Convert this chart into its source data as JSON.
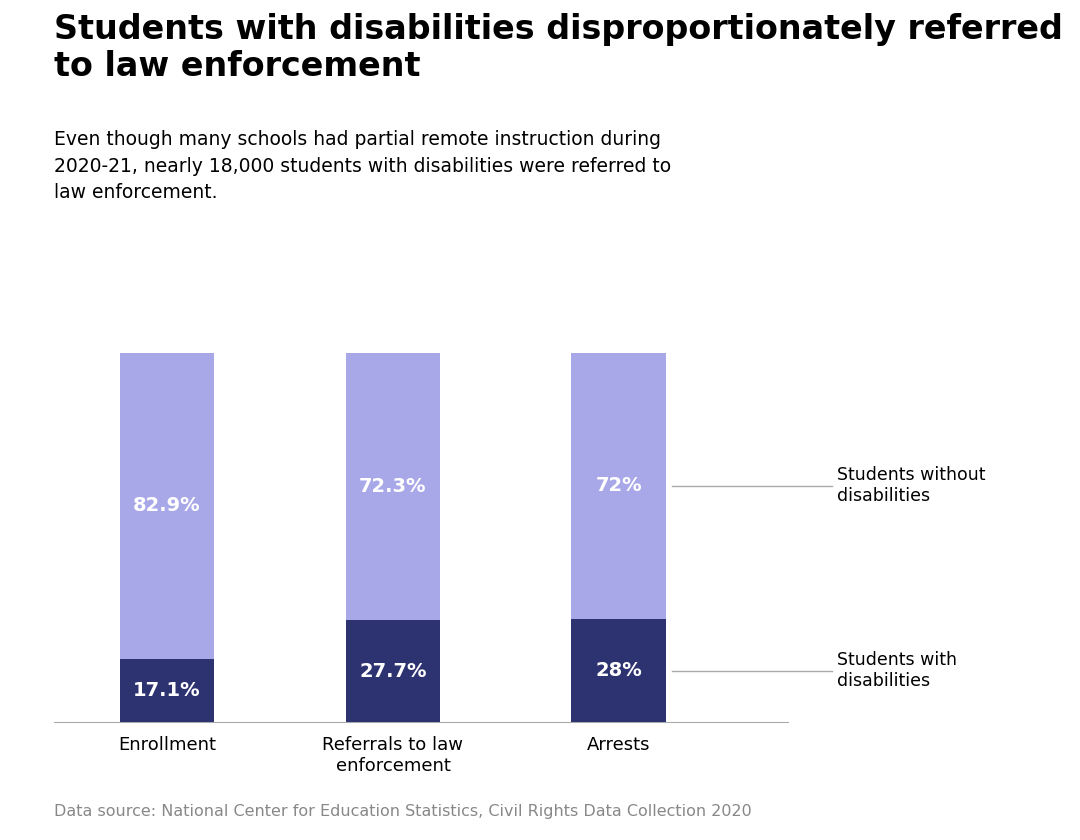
{
  "title": "Students with disabilities disproportionately referred\nto law enforcement",
  "subtitle": "Even though many schools had partial remote instruction during\n2020-21, nearly 18,000 students with disabilities were referred to\nlaw enforcement.",
  "categories": [
    "Enrollment",
    "Referrals to law\nenforcement",
    "Arrests"
  ],
  "with_disabilities": [
    17.1,
    27.7,
    28.0
  ],
  "without_disabilities": [
    82.9,
    72.3,
    72.0
  ],
  "with_disabilities_labels": [
    "17.1%",
    "27.7%",
    "28%"
  ],
  "without_disabilities_labels": [
    "82.9%",
    "72.3%",
    "72%"
  ],
  "color_with": "#2d3270",
  "color_without": "#a8a8e8",
  "background_color": "#ffffff",
  "legend_with": "Students with\ndisabilities",
  "legend_without": "Students without\ndisabilities",
  "data_source": "Data source: National Center for Education Statistics, Civil Rights Data Collection 2020",
  "bar_width": 0.42
}
